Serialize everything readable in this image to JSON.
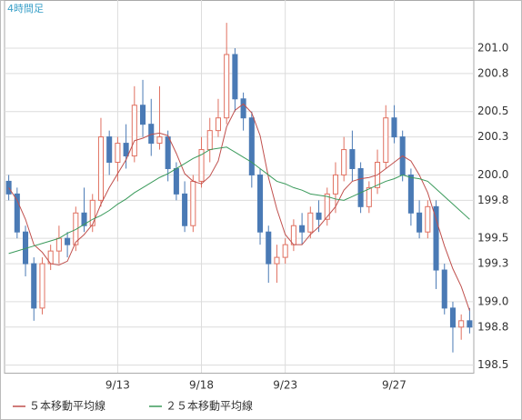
{
  "chart_data": {
    "type": "candlestick",
    "title": "4時間足",
    "open": [
      199.95,
      199.85,
      199.55,
      199.3,
      198.95,
      199.3,
      199.4,
      199.5,
      199.45,
      199.7,
      199.6,
      199.8,
      200.3,
      200.1,
      200.25,
      200.15,
      200.55,
      200.4,
      200.25,
      200.3,
      200.05,
      199.85,
      199.6,
      199.95,
      200.2,
      200.35,
      200.45,
      200.95,
      200.6,
      200.45,
      200.0,
      199.55,
      199.3,
      199.35,
      199.45,
      199.6,
      199.55,
      199.7,
      199.65,
      199.85,
      200.0,
      200.2,
      200.05,
      199.75,
      199.9,
      200.1,
      200.45,
      200.3,
      200.0,
      199.7,
      199.55,
      199.75,
      199.25,
      198.95,
      198.8,
      198.85
    ],
    "high": [
      200.0,
      199.9,
      199.6,
      199.35,
      199.35,
      199.45,
      199.6,
      199.55,
      199.75,
      199.9,
      199.85,
      200.45,
      200.35,
      200.3,
      200.4,
      200.7,
      200.75,
      200.6,
      200.7,
      200.35,
      200.1,
      199.95,
      200.0,
      200.3,
      200.45,
      200.6,
      201.2,
      201.0,
      200.65,
      200.5,
      200.05,
      199.6,
      199.45,
      199.5,
      199.65,
      199.7,
      199.75,
      199.8,
      199.9,
      200.1,
      200.3,
      200.35,
      200.1,
      199.95,
      200.2,
      200.55,
      200.55,
      200.35,
      200.05,
      199.8,
      199.8,
      199.8,
      199.3,
      199.0,
      198.9,
      198.95
    ],
    "low": [
      199.8,
      199.5,
      199.2,
      198.85,
      198.9,
      199.25,
      199.3,
      199.35,
      199.4,
      199.55,
      199.55,
      199.75,
      200.0,
      199.95,
      200.05,
      200.1,
      200.3,
      200.15,
      200.2,
      199.95,
      199.8,
      199.55,
      199.55,
      199.9,
      200.1,
      200.3,
      200.4,
      200.5,
      200.35,
      199.9,
      199.45,
      199.15,
      199.15,
      199.3,
      199.4,
      199.45,
      199.5,
      199.55,
      199.6,
      199.7,
      199.95,
      199.95,
      199.7,
      199.7,
      199.85,
      200.05,
      200.25,
      199.95,
      199.6,
      199.5,
      199.5,
      199.1,
      198.9,
      198.6,
      198.7,
      198.75
    ],
    "close": [
      199.85,
      199.55,
      199.3,
      198.95,
      199.3,
      199.4,
      199.5,
      199.45,
      199.7,
      199.6,
      199.8,
      200.3,
      200.1,
      200.25,
      200.15,
      200.55,
      200.4,
      200.25,
      200.3,
      200.05,
      199.85,
      199.6,
      199.95,
      200.2,
      200.35,
      200.45,
      200.95,
      200.6,
      200.45,
      200.0,
      199.55,
      199.3,
      199.35,
      199.45,
      199.6,
      199.55,
      199.7,
      199.65,
      199.85,
      200.0,
      200.2,
      200.05,
      199.75,
      199.9,
      200.1,
      200.45,
      200.3,
      200.0,
      199.7,
      199.55,
      199.75,
      199.25,
      198.95,
      198.8,
      198.85,
      198.8
    ],
    "up_color": "#e07060",
    "down_color": "#4a7ab5",
    "series": [
      {
        "name": "５本移動平均線",
        "color": "#c0504d",
        "values": [
          199.9,
          199.8,
          199.65,
          199.45,
          199.39,
          199.3,
          199.29,
          199.32,
          199.47,
          199.53,
          199.61,
          199.77,
          199.9,
          200.01,
          200.12,
          200.27,
          200.29,
          200.32,
          200.33,
          200.31,
          200.17,
          200.01,
          199.95,
          199.93,
          199.99,
          200.11,
          200.38,
          200.51,
          200.56,
          200.49,
          200.31,
          199.98,
          199.73,
          199.53,
          199.45,
          199.45,
          199.53,
          199.59,
          199.67,
          199.75,
          199.88,
          199.95,
          199.97,
          199.98,
          200.0,
          200.05,
          200.1,
          200.15,
          200.11,
          200.0,
          199.86,
          199.65,
          199.44,
          199.26,
          199.12,
          198.93
        ]
      },
      {
        "name": "２５本移動平均線",
        "color": "#3a9a5b",
        "values": [
          199.38,
          199.4,
          199.42,
          199.44,
          199.46,
          199.48,
          199.5,
          199.54,
          199.57,
          199.61,
          199.65,
          199.68,
          199.72,
          199.77,
          199.81,
          199.86,
          199.9,
          199.94,
          199.98,
          200.01,
          200.05,
          200.09,
          200.13,
          200.16,
          200.2,
          200.21,
          200.22,
          200.18,
          200.14,
          200.1,
          200.05,
          200.0,
          199.95,
          199.93,
          199.9,
          199.88,
          199.85,
          199.84,
          199.83,
          199.81,
          199.8,
          199.83,
          199.86,
          199.89,
          199.92,
          199.95,
          199.97,
          200.0,
          199.98,
          199.97,
          199.95,
          199.89,
          199.83,
          199.77,
          199.71,
          199.65
        ]
      }
    ],
    "xlim": [
      -0.5,
      55.5
    ],
    "xticks": [
      {
        "value": 13,
        "label": "9/13"
      },
      {
        "value": 23,
        "label": "9/18"
      },
      {
        "value": 33,
        "label": "9/23"
      },
      {
        "value": 46,
        "label": "9/27"
      }
    ],
    "ylim": [
      198.44,
      201.38
    ],
    "yticks": [
      {
        "value": 198.5,
        "label": "198.5"
      },
      198.8,
      {
        "value": 199.0,
        "label": "199.0"
      },
      199.3,
      199.5,
      199.8,
      {
        "value": 200.0,
        "label": "200.0"
      },
      200.3,
      200.5,
      200.8,
      {
        "value": 201.0,
        "label": "201.0"
      }
    ],
    "grid": true
  }
}
